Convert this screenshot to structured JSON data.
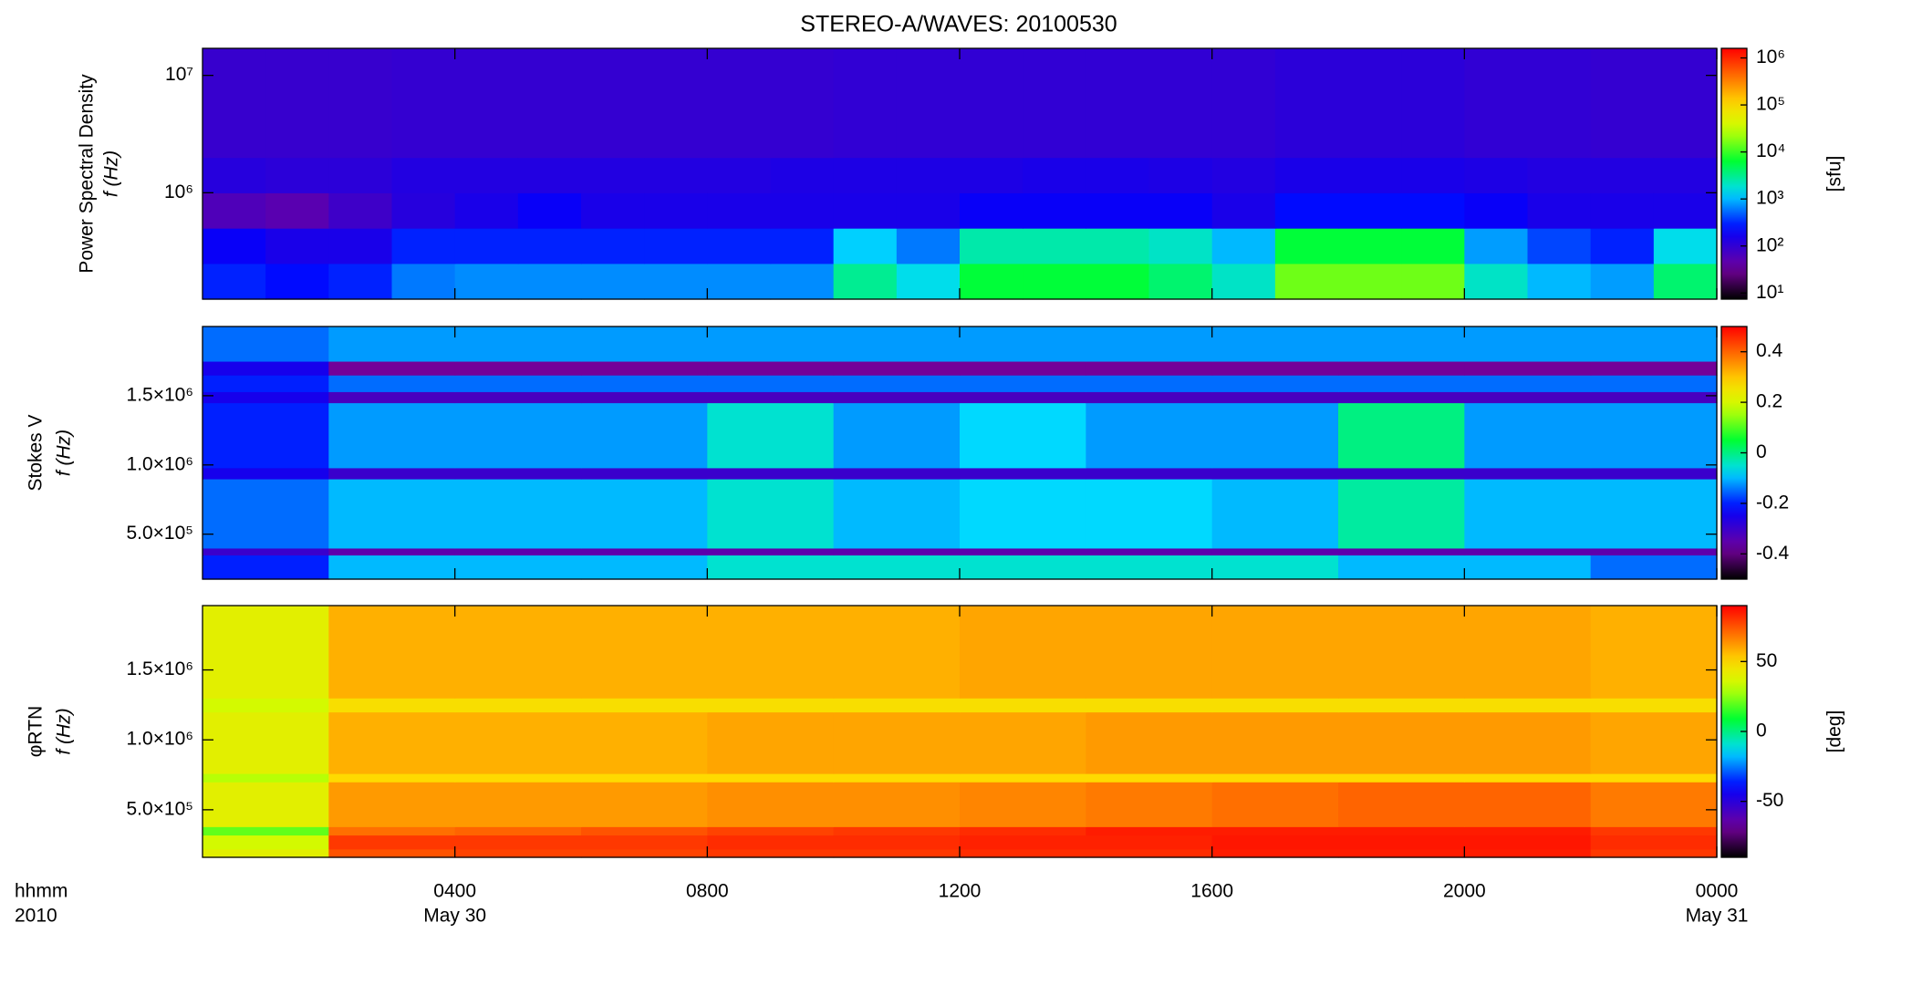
{
  "chart_data": [
    {
      "type": "heatmap",
      "title": "STEREO-A/WAVES: 20100530",
      "ylabel": [
        "Power Spectral Density",
        "f (Hz)"
      ],
      "colorbar_label": "[sfu]",
      "colormap": "rainbow",
      "yscale": "log",
      "cscale": "log",
      "xlim": [
        0,
        24
      ],
      "xticks": [
        4,
        8,
        12,
        16,
        20,
        24
      ],
      "ylim": [
        124000,
        17000000
      ],
      "yticks": [
        {
          "value": 1000000,
          "label": "10⁶"
        },
        {
          "value": 10000000,
          "label": "10⁷"
        }
      ],
      "clim": [
        7.4,
        1600000
      ],
      "cticks": [
        {
          "value": 10,
          "label": "10¹"
        },
        {
          "value": 100,
          "label": "10²"
        },
        {
          "value": 1000,
          "label": "10³"
        },
        {
          "value": 10000,
          "label": "10⁴"
        },
        {
          "value": 100000,
          "label": "10⁵"
        },
        {
          "value": 1000000,
          "label": "10⁶"
        }
      ],
      "x_edges": [
        0,
        1,
        2,
        3,
        4,
        5,
        6,
        7,
        8,
        9,
        10,
        11,
        12,
        13,
        14,
        15,
        16,
        17,
        18,
        19,
        20,
        21,
        22,
        23,
        24
      ],
      "y_edges": [
        124000,
        250000,
        500000,
        1000000,
        2000000,
        17000000
      ],
      "values": [
        [
          300,
          250,
          300,
          600,
          700,
          700,
          700,
          700,
          700,
          700,
          3000,
          1500,
          6000,
          6000,
          6000,
          4000,
          2000,
          15000,
          15000,
          15000,
          2000,
          1000,
          800,
          4000
        ],
        [
          200,
          150,
          150,
          300,
          300,
          300,
          300,
          300,
          300,
          300,
          1200,
          600,
          2500,
          2500,
          2500,
          2000,
          1000,
          6000,
          6000,
          6000,
          800,
          400,
          300,
          1500
        ],
        [
          60,
          50,
          80,
          120,
          150,
          200,
          150,
          150,
          150,
          150,
          150,
          150,
          200,
          200,
          200,
          200,
          150,
          250,
          250,
          250,
          200,
          150,
          150,
          150
        ],
        [
          120,
          110,
          110,
          130,
          130,
          130,
          130,
          130,
          130,
          140,
          140,
          140,
          140,
          150,
          150,
          140,
          130,
          150,
          150,
          150,
          140,
          130,
          130,
          130
        ],
        [
          90,
          90,
          90,
          95,
          95,
          95,
          95,
          95,
          95,
          95,
          100,
          100,
          100,
          100,
          100,
          100,
          100,
          110,
          110,
          110,
          100,
          100,
          95,
          95
        ]
      ]
    },
    {
      "type": "heatmap",
      "ylabel": [
        "Stokes V",
        "f (Hz)"
      ],
      "colormap": "rainbow",
      "yscale": "linear",
      "cscale": "linear",
      "xlim": [
        0,
        24
      ],
      "xticks": [
        4,
        8,
        12,
        16,
        20,
        24
      ],
      "ylim": [
        175000,
        2000000
      ],
      "yticks": [
        {
          "value": 500000,
          "label": "5.0×10⁵"
        },
        {
          "value": 1000000,
          "label": "1.0×10⁶"
        },
        {
          "value": 1500000,
          "label": "1.5×10⁶"
        }
      ],
      "clim": [
        -0.5,
        0.5
      ],
      "cticks": [
        -0.4,
        -0.2,
        0.0,
        0.2,
        0.4
      ],
      "x_edges": [
        0,
        2,
        4,
        6,
        8,
        10,
        12,
        14,
        16,
        18,
        20,
        22,
        24
      ],
      "y_edges": [
        175000,
        350000,
        400000,
        900000,
        980000,
        1450000,
        1530000,
        1650000,
        1750000,
        2000000
      ],
      "values": [
        [
          -0.2,
          -0.1,
          -0.1,
          -0.1,
          -0.05,
          -0.05,
          -0.05,
          -0.05,
          -0.05,
          -0.1,
          -0.1,
          -0.15
        ],
        [
          -0.3,
          -0.35,
          -0.35,
          -0.35,
          -0.35,
          -0.35,
          -0.35,
          -0.35,
          -0.35,
          -0.35,
          -0.35,
          -0.35
        ],
        [
          -0.15,
          -0.1,
          -0.1,
          -0.1,
          -0.05,
          -0.1,
          -0.08,
          -0.08,
          -0.1,
          -0.02,
          -0.1,
          -0.1
        ],
        [
          -0.25,
          -0.3,
          -0.3,
          -0.3,
          -0.3,
          -0.3,
          -0.3,
          -0.3,
          -0.3,
          -0.3,
          -0.3,
          -0.3
        ],
        [
          -0.2,
          -0.12,
          -0.12,
          -0.12,
          -0.05,
          -0.12,
          -0.08,
          -0.12,
          -0.12,
          0,
          -0.12,
          -0.12
        ],
        [
          -0.25,
          -0.32,
          -0.32,
          -0.32,
          -0.32,
          -0.32,
          -0.32,
          -0.32,
          -0.32,
          -0.32,
          -0.32,
          -0.32
        ],
        [
          -0.2,
          -0.15,
          -0.15,
          -0.15,
          -0.15,
          -0.15,
          -0.15,
          -0.15,
          -0.15,
          -0.15,
          -0.15,
          -0.15
        ],
        [
          -0.25,
          -0.38,
          -0.38,
          -0.38,
          -0.38,
          -0.38,
          -0.38,
          -0.38,
          -0.38,
          -0.38,
          -0.38,
          -0.38
        ],
        [
          -0.15,
          -0.12,
          -0.12,
          -0.12,
          -0.12,
          -0.12,
          -0.12,
          -0.12,
          -0.12,
          -0.12,
          -0.12,
          -0.12
        ]
      ]
    },
    {
      "type": "heatmap",
      "ylabel": [
        "φRTN",
        "f (Hz)"
      ],
      "colorbar_label": "[deg]",
      "colormap": "rainbow",
      "yscale": "linear",
      "cscale": "linear",
      "xlim": [
        0,
        24
      ],
      "xticks": [
        {
          "value": 4,
          "label": "0400"
        },
        {
          "value": 8,
          "label": "0800"
        },
        {
          "value": 12,
          "label": "1200"
        },
        {
          "value": 16,
          "label": "1600"
        },
        {
          "value": 20,
          "label": "2000"
        },
        {
          "value": 24,
          "label": "0000"
        }
      ],
      "xdate_labels": [
        {
          "value": 4,
          "label": "May 30"
        },
        {
          "value": 24,
          "label": "May 31"
        }
      ],
      "xlabel": [
        "hhmm",
        "2010"
      ],
      "ylim": [
        160000,
        1960000
      ],
      "yticks": [
        {
          "value": 500000,
          "label": "5.0×10⁵"
        },
        {
          "value": 1000000,
          "label": "1.0×10⁶"
        },
        {
          "value": 1500000,
          "label": "1.5×10⁶"
        }
      ],
      "clim": [
        -90,
        90
      ],
      "cticks": [
        -50,
        0,
        50
      ],
      "x_edges": [
        0,
        2,
        4,
        6,
        8,
        10,
        12,
        14,
        16,
        18,
        20,
        22,
        24
      ],
      "y_edges": [
        160000,
        220000,
        320000,
        380000,
        700000,
        760000,
        1200000,
        1300000,
        1960000
      ],
      "values": [
        [
          40,
          75,
          78,
          78,
          80,
          80,
          82,
          82,
          85,
          85,
          85,
          80
        ],
        [
          35,
          80,
          80,
          80,
          82,
          82,
          84,
          84,
          86,
          86,
          86,
          82
        ],
        [
          20,
          70,
          72,
          75,
          78,
          80,
          82,
          85,
          85,
          85,
          85,
          80
        ],
        [
          40,
          62,
          62,
          62,
          64,
          64,
          66,
          68,
          70,
          72,
          72,
          68
        ],
        [
          30,
          50,
          50,
          50,
          50,
          50,
          50,
          50,
          50,
          50,
          50,
          50
        ],
        [
          40,
          58,
          58,
          58,
          60,
          60,
          60,
          62,
          62,
          62,
          62,
          60
        ],
        [
          35,
          48,
          48,
          48,
          48,
          48,
          48,
          48,
          48,
          48,
          48,
          48
        ],
        [
          40,
          58,
          58,
          58,
          58,
          58,
          60,
          60,
          60,
          60,
          60,
          58
        ]
      ]
    }
  ]
}
